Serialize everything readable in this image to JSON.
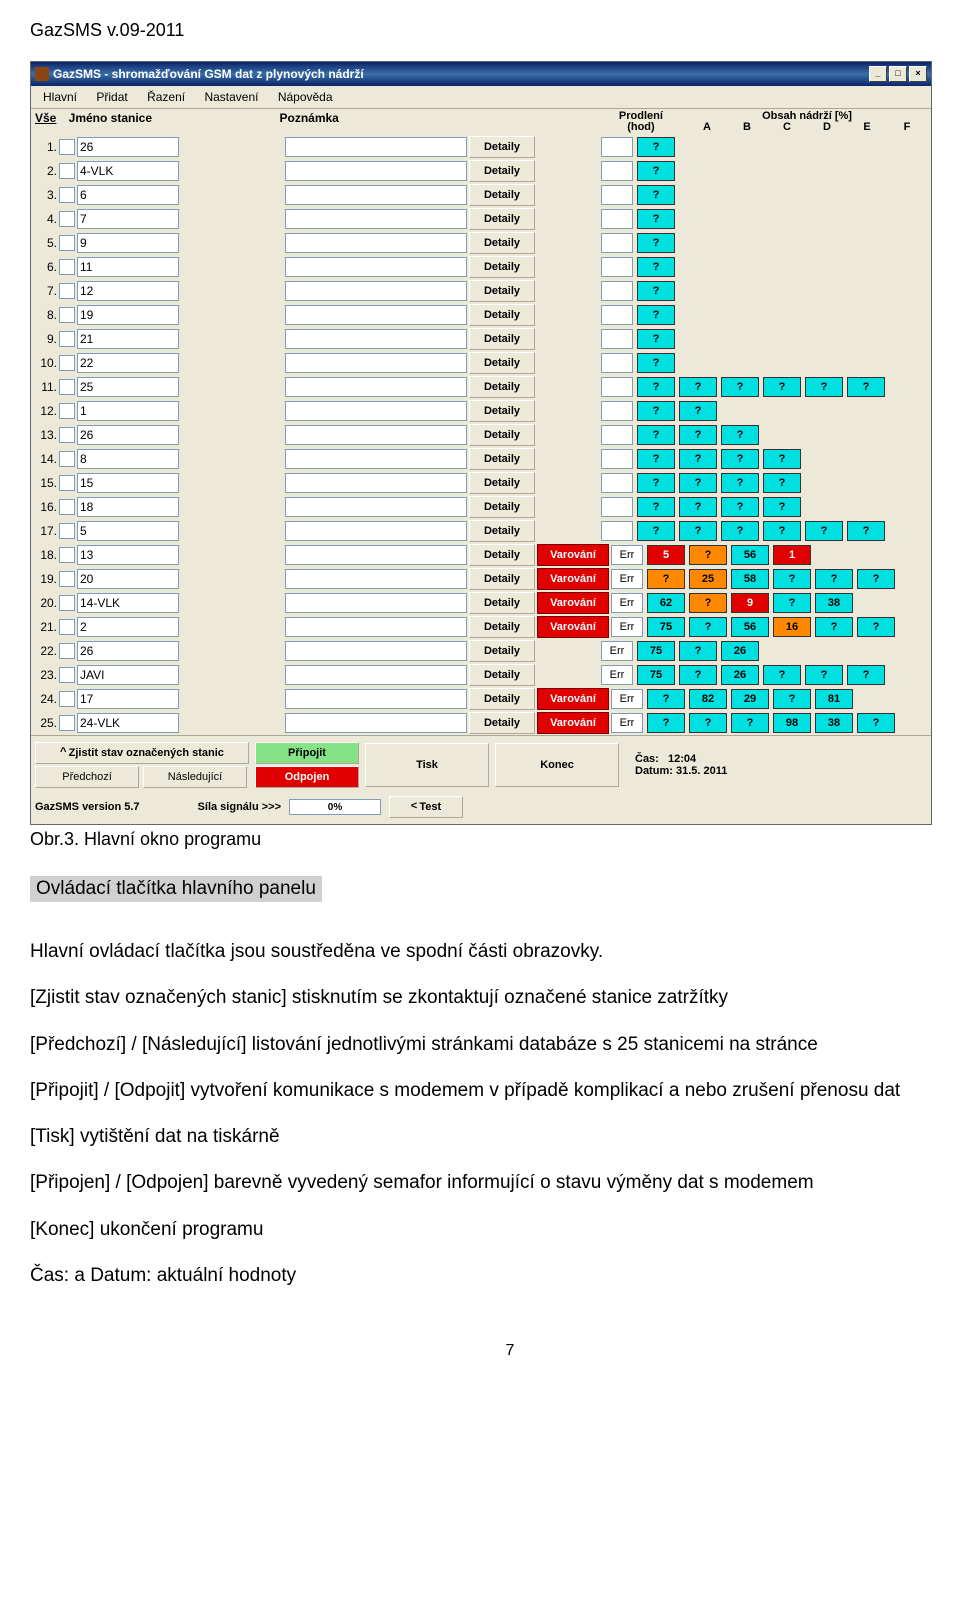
{
  "doc": {
    "header": "GazSMS v.09-2011",
    "caption": "Obr.3. Hlavní okno programu",
    "section_title": "Ovládací tlačítka hlavního panelu",
    "page_number": "7"
  },
  "para": {
    "p1": "Hlavní ovládací tlačítka jsou soustředěna ve spodní části obrazovky.",
    "p2": "[Zjistit stav označených stanic] stisknutím se zkontaktují označené stanice zatržítky",
    "p3": "[Předchozí] / [Následující] listování jednotlivými stránkami databáze s 25 stanicemi na stránce",
    "p4": "[Připojit] / [Odpojit] vytvoření komunikace s modemem v případě komplikací a nebo zrušení přenosu dat",
    "p5": "[Tisk] vytištění dat na tiskárně",
    "p6": "[Připojen] / [Odpojen] barevně vyvedený semafor informující o stavu výměny dat s modemem",
    "p7": "[Konec] ukončení programu",
    "p8": "Čas:  a Datum: aktuální hodnoty"
  },
  "app": {
    "title": "GazSMS - shromažďování GSM dat z plynových nádrží"
  },
  "menu": [
    "Hlavní",
    "Přidat",
    "Řazení",
    "Nastavení",
    "Nápověda"
  ],
  "headers": {
    "vse": "Vše",
    "jmeno": "Jméno stanice",
    "poznamka": "Poznámka",
    "prodleni_top": "Prodlení",
    "prodleni_bot": "(hod)",
    "obsah": "Obsah nádrží [%]"
  },
  "letters": [
    "A",
    "B",
    "C",
    "D",
    "E",
    "F"
  ],
  "buttons": {
    "details": "Detaily",
    "warning": "Varování",
    "zjistit": "Zjistit stav označených stanic",
    "predchozi": "Předchozí",
    "nasledujici": "Následující",
    "pripojit": "Připojit",
    "odpojen": "Odpojen",
    "tisk": "Tisk",
    "konec": "Konec",
    "test": "Test"
  },
  "info": {
    "cas_label": "Čas:",
    "cas": "12:04",
    "datum_label": "Datum:",
    "datum": "31.5. 2011",
    "version": "GazSMS   version 5.7",
    "signal": "Síla signálu  >>>",
    "percent": "0%"
  },
  "rows": [
    {
      "n": "1.",
      "name": "26",
      "tanks": [
        {
          "v": "?",
          "c": "cyan"
        }
      ]
    },
    {
      "n": "2.",
      "name": "4-VLK",
      "tanks": [
        {
          "v": "?",
          "c": "cyan"
        }
      ]
    },
    {
      "n": "3.",
      "name": "6",
      "tanks": [
        {
          "v": "?",
          "c": "cyan"
        }
      ]
    },
    {
      "n": "4.",
      "name": "7",
      "tanks": [
        {
          "v": "?",
          "c": "cyan"
        }
      ]
    },
    {
      "n": "5.",
      "name": "9",
      "tanks": [
        {
          "v": "?",
          "c": "cyan"
        }
      ]
    },
    {
      "n": "6.",
      "name": "11",
      "tanks": [
        {
          "v": "?",
          "c": "cyan"
        }
      ]
    },
    {
      "n": "7.",
      "name": "12",
      "tanks": [
        {
          "v": "?",
          "c": "cyan"
        }
      ]
    },
    {
      "n": "8.",
      "name": "19",
      "tanks": [
        {
          "v": "?",
          "c": "cyan"
        }
      ]
    },
    {
      "n": "9.",
      "name": "21",
      "tanks": [
        {
          "v": "?",
          "c": "cyan"
        }
      ]
    },
    {
      "n": "10.",
      "name": "22",
      "tanks": [
        {
          "v": "?",
          "c": "cyan"
        }
      ]
    },
    {
      "n": "11.",
      "name": "25",
      "tanks": [
        {
          "v": "?",
          "c": "cyan"
        },
        {
          "v": "?",
          "c": "cyan"
        },
        {
          "v": "?",
          "c": "cyan"
        },
        {
          "v": "?",
          "c": "cyan"
        },
        {
          "v": "?",
          "c": "cyan"
        },
        {
          "v": "?",
          "c": "cyan"
        }
      ]
    },
    {
      "n": "12.",
      "name": "1",
      "tanks": [
        {
          "v": "?",
          "c": "cyan"
        },
        {
          "v": "?",
          "c": "cyan"
        }
      ]
    },
    {
      "n": "13.",
      "name": "26",
      "tanks": [
        {
          "v": "?",
          "c": "cyan"
        },
        {
          "v": "?",
          "c": "cyan"
        },
        {
          "v": "?",
          "c": "cyan"
        }
      ]
    },
    {
      "n": "14.",
      "name": "8",
      "tanks": [
        {
          "v": "?",
          "c": "cyan"
        },
        {
          "v": "?",
          "c": "cyan"
        },
        {
          "v": "?",
          "c": "cyan"
        },
        {
          "v": "?",
          "c": "cyan"
        }
      ]
    },
    {
      "n": "15.",
      "name": "15",
      "tanks": [
        {
          "v": "?",
          "c": "cyan"
        },
        {
          "v": "?",
          "c": "cyan"
        },
        {
          "v": "?",
          "c": "cyan"
        },
        {
          "v": "?",
          "c": "cyan"
        }
      ]
    },
    {
      "n": "16.",
      "name": "18",
      "tanks": [
        {
          "v": "?",
          "c": "cyan"
        },
        {
          "v": "?",
          "c": "cyan"
        },
        {
          "v": "?",
          "c": "cyan"
        },
        {
          "v": "?",
          "c": "cyan"
        }
      ]
    },
    {
      "n": "17.",
      "name": "5",
      "tanks": [
        {
          "v": "?",
          "c": "cyan"
        },
        {
          "v": "?",
          "c": "cyan"
        },
        {
          "v": "?",
          "c": "cyan"
        },
        {
          "v": "?",
          "c": "cyan"
        },
        {
          "v": "?",
          "c": "cyan"
        },
        {
          "v": "?",
          "c": "cyan"
        }
      ]
    },
    {
      "n": "18.",
      "name": "13",
      "warn": true,
      "prod": "Err",
      "tanks": [
        {
          "v": "5",
          "c": "red"
        },
        {
          "v": "?",
          "c": "orange"
        },
        {
          "v": "56",
          "c": "cyan"
        },
        {
          "v": "1",
          "c": "red"
        }
      ]
    },
    {
      "n": "19.",
      "name": "20",
      "warn": true,
      "prod": "Err",
      "tanks": [
        {
          "v": "?",
          "c": "orange"
        },
        {
          "v": "25",
          "c": "orange"
        },
        {
          "v": "58",
          "c": "cyan"
        },
        {
          "v": "?",
          "c": "cyan"
        },
        {
          "v": "?",
          "c": "cyan"
        },
        {
          "v": "?",
          "c": "cyan"
        }
      ]
    },
    {
      "n": "20.",
      "name": "14-VLK",
      "warn": true,
      "prod": "Err",
      "tanks": [
        {
          "v": "62",
          "c": "cyan"
        },
        {
          "v": "?",
          "c": "orange"
        },
        {
          "v": "9",
          "c": "red"
        },
        {
          "v": "?",
          "c": "cyan"
        },
        {
          "v": "38",
          "c": "cyan"
        }
      ]
    },
    {
      "n": "21.",
      "name": "2",
      "warn": true,
      "prod": "Err",
      "tanks": [
        {
          "v": "75",
          "c": "cyan"
        },
        {
          "v": "?",
          "c": "cyan"
        },
        {
          "v": "56",
          "c": "cyan"
        },
        {
          "v": "16",
          "c": "orange"
        },
        {
          "v": "?",
          "c": "cyan"
        },
        {
          "v": "?",
          "c": "cyan"
        }
      ]
    },
    {
      "n": "22.",
      "name": "26",
      "warn": false,
      "prod": "Err",
      "tanks": [
        {
          "v": "75",
          "c": "cyan"
        },
        {
          "v": "?",
          "c": "cyan"
        },
        {
          "v": "26",
          "c": "cyan"
        }
      ]
    },
    {
      "n": "23.",
      "name": "JAVI",
      "warn": false,
      "prod": "Err",
      "tanks": [
        {
          "v": "75",
          "c": "cyan"
        },
        {
          "v": "?",
          "c": "cyan"
        },
        {
          "v": "26",
          "c": "cyan"
        },
        {
          "v": "?",
          "c": "cyan"
        },
        {
          "v": "?",
          "c": "cyan"
        },
        {
          "v": "?",
          "c": "cyan"
        }
      ]
    },
    {
      "n": "24.",
      "name": "17",
      "warn": true,
      "prod": "Err",
      "tanks": [
        {
          "v": "?",
          "c": "cyan"
        },
        {
          "v": "82",
          "c": "cyan"
        },
        {
          "v": "29",
          "c": "cyan"
        },
        {
          "v": "?",
          "c": "cyan"
        },
        {
          "v": "81",
          "c": "cyan"
        }
      ]
    },
    {
      "n": "25.",
      "name": "24-VLK",
      "warn": true,
      "prod": "Err",
      "tanks": [
        {
          "v": "?",
          "c": "cyan"
        },
        {
          "v": "?",
          "c": "cyan"
        },
        {
          "v": "?",
          "c": "cyan"
        },
        {
          "v": "98",
          "c": "cyan"
        },
        {
          "v": "38",
          "c": "cyan"
        },
        {
          "v": "?",
          "c": "cyan"
        }
      ]
    }
  ],
  "colors": {
    "cyan": "#00e0e0",
    "orange": "#ff8800",
    "red": "#e00000",
    "win_bg": "#ece9d8",
    "title_bg": "#0a246a"
  }
}
